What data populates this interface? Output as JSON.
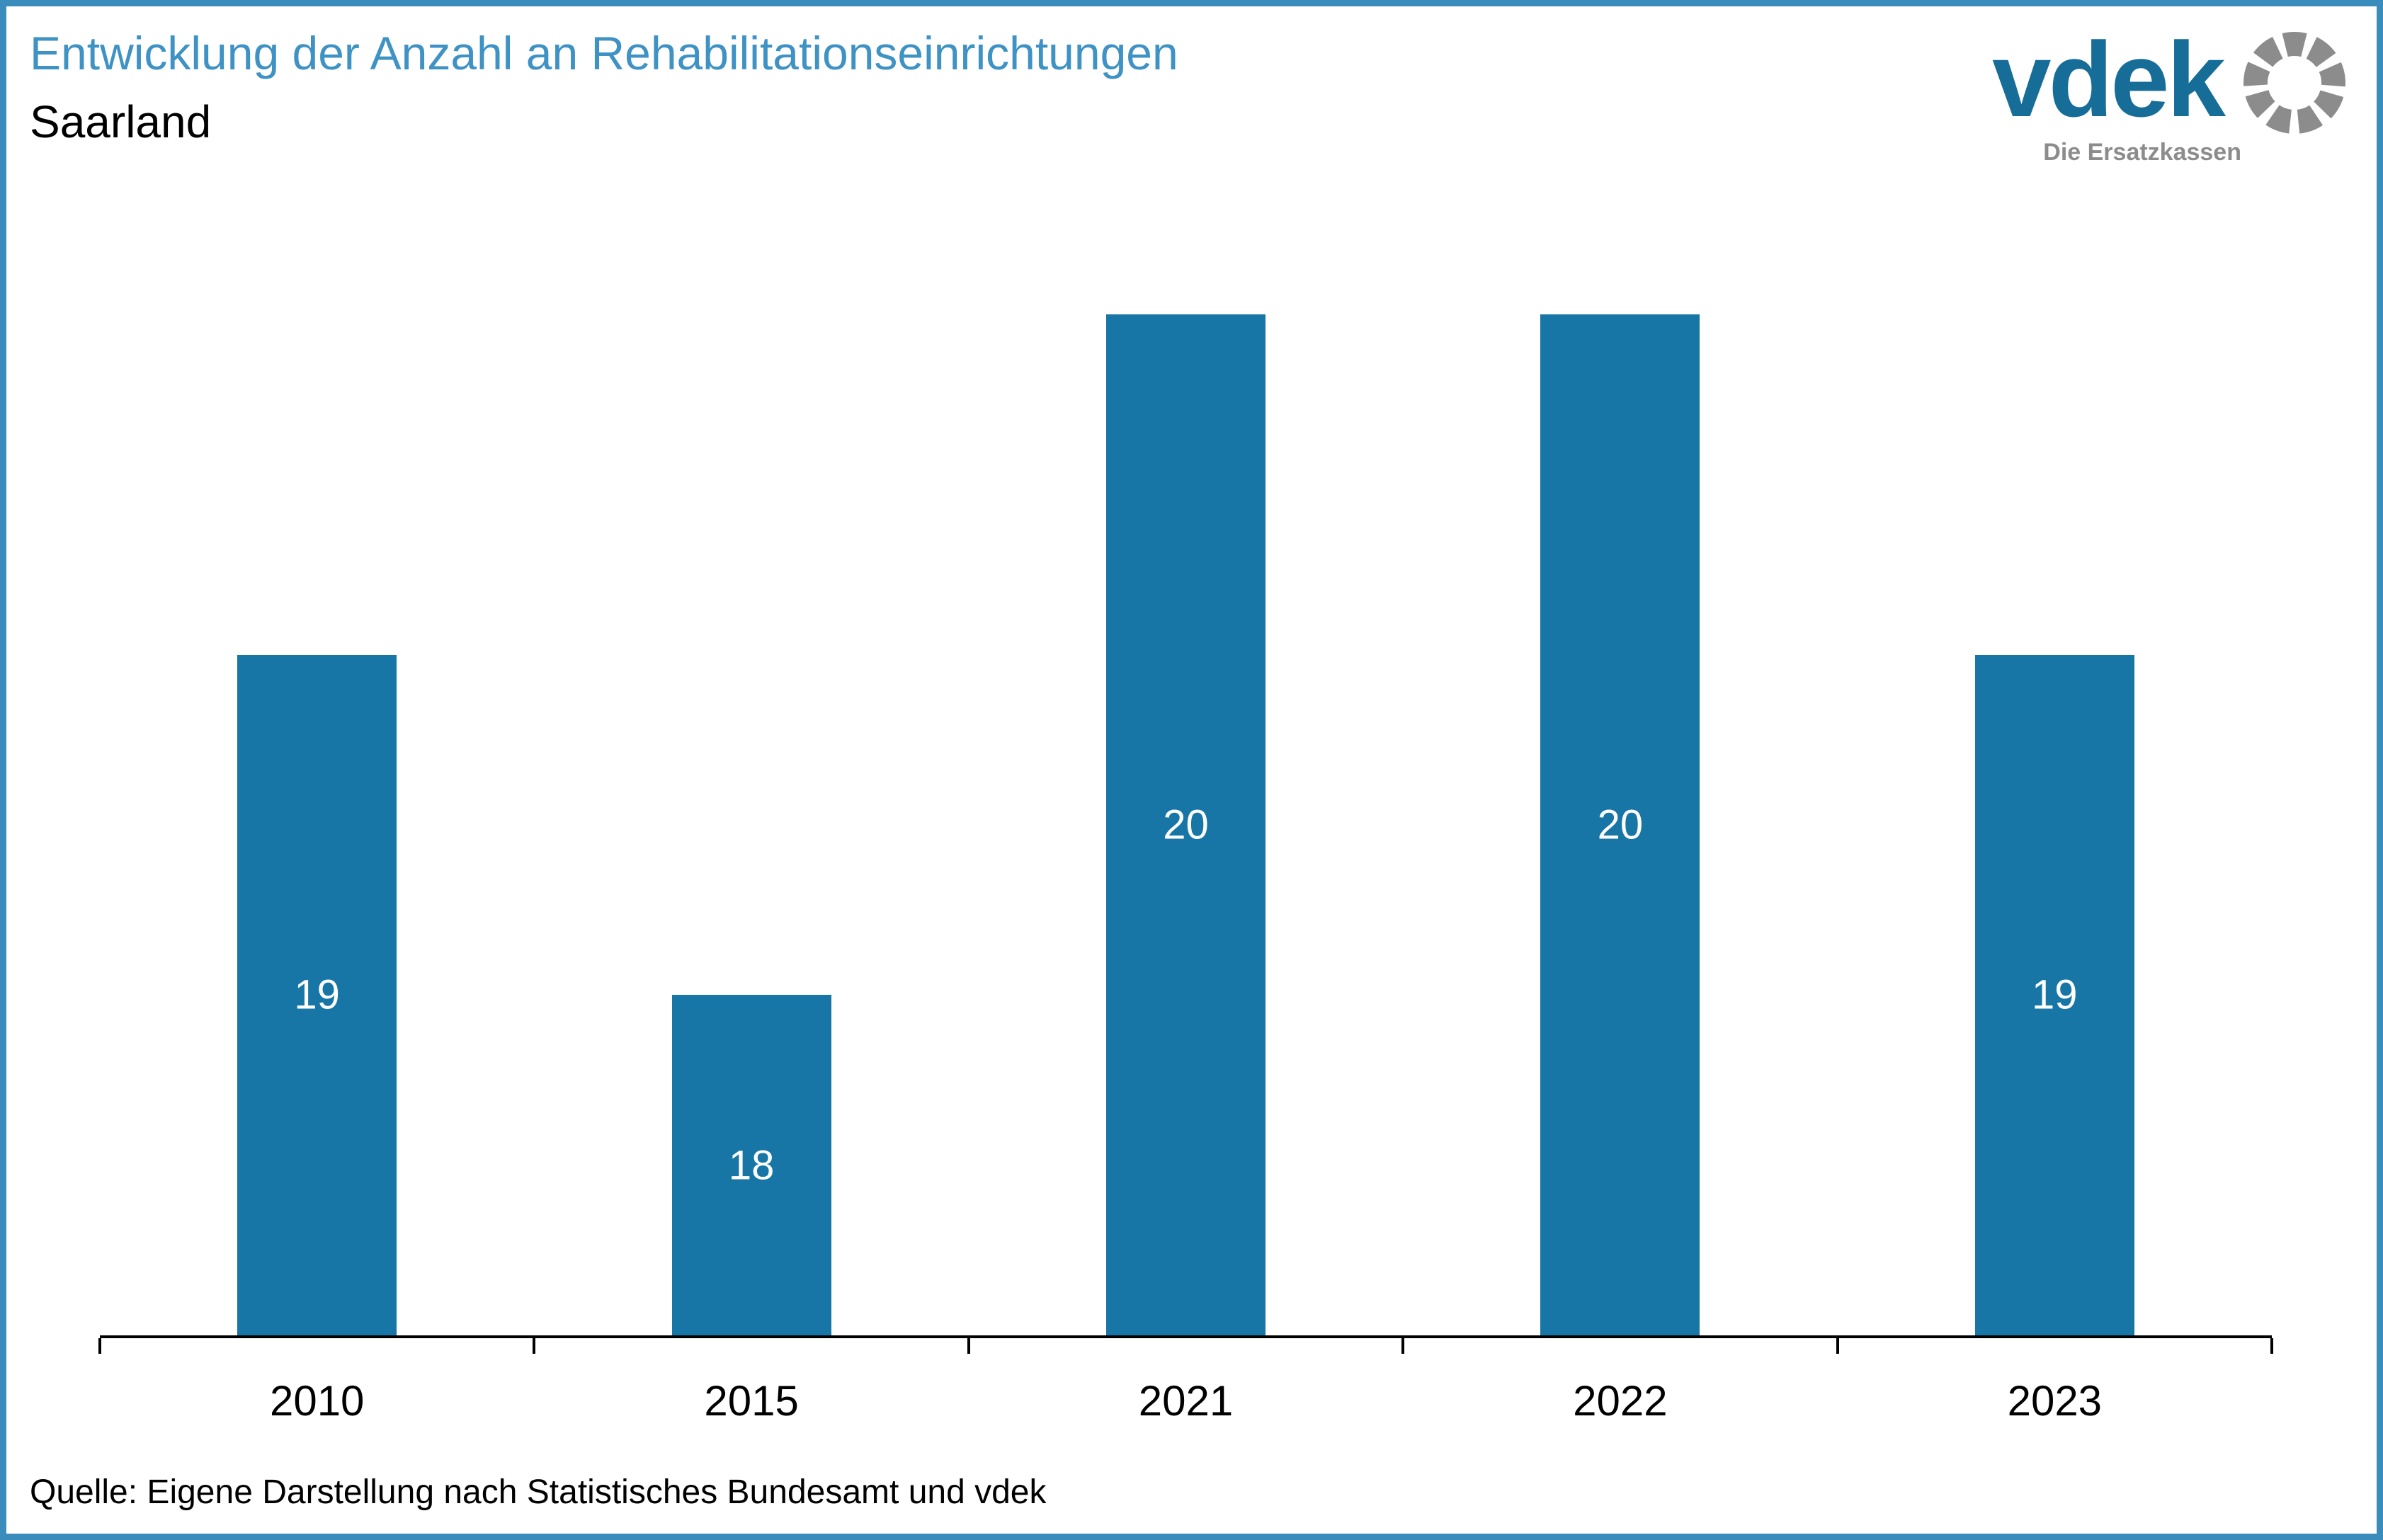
{
  "header": {
    "title": "Entwicklung der Anzahl an Rehabilitationseinrichtungen",
    "subtitle": "Saarland"
  },
  "logo": {
    "wordmark": "vdek",
    "tagline": "Die Ersatzkassen",
    "wordmark_color": "#166E98",
    "ring_color": "#8C8C8C"
  },
  "chart_data": {
    "type": "bar",
    "title": "Entwicklung der Anzahl an Rehabilitationseinrichtungen",
    "subtitle": "Saarland",
    "categories": [
      "2010",
      "2015",
      "2021",
      "2022",
      "2023"
    ],
    "values": [
      19,
      18,
      20,
      20,
      19
    ],
    "ylim": [
      17,
      20
    ],
    "xlabel": "",
    "ylabel": "",
    "grid": false,
    "legend": false,
    "y_axis_visible": false,
    "data_label_position": "center",
    "bar_color": "#1776A6",
    "label_color": "#FFFFFF"
  },
  "footer": {
    "source": "Quelle: Eigene Darstellung nach Statistisches Bundesamt und vdek"
  },
  "colors": {
    "frame": "#3A8CBC",
    "title": "#3E92C4",
    "axis": "#000000"
  }
}
